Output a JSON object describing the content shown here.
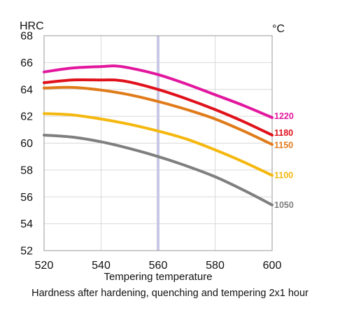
{
  "chart_data": {
    "type": "line",
    "xlabel": "Tempering temperature",
    "ylabel": "HRC",
    "y_unit_label": "HRC",
    "legend_unit_label": "°C",
    "caption": "Hardness after hardening, quenching and tempering  2x1 hour",
    "xlim": [
      520,
      600
    ],
    "ylim": [
      52,
      68
    ],
    "xticks": [
      520,
      540,
      560,
      580,
      600
    ],
    "yticks": [
      52,
      54,
      56,
      58,
      60,
      62,
      64,
      66,
      68
    ],
    "grid": true,
    "highlight_x": 560,
    "highlight_color": "#c8c8e6",
    "series": [
      {
        "name": "1220",
        "color": "#e2179e",
        "points": [
          [
            520,
            65.3
          ],
          [
            530,
            65.6
          ],
          [
            540,
            65.7
          ],
          [
            545,
            65.75
          ],
          [
            550,
            65.6
          ],
          [
            560,
            65.1
          ],
          [
            570,
            64.4
          ],
          [
            580,
            63.6
          ],
          [
            590,
            62.8
          ],
          [
            600,
            61.9
          ]
        ]
      },
      {
        "name": "1180",
        "color": "#e0111b",
        "points": [
          [
            520,
            64.5
          ],
          [
            530,
            64.7
          ],
          [
            540,
            64.7
          ],
          [
            545,
            64.7
          ],
          [
            550,
            64.55
          ],
          [
            560,
            64.0
          ],
          [
            570,
            63.3
          ],
          [
            580,
            62.5
          ],
          [
            590,
            61.6
          ],
          [
            600,
            60.6
          ]
        ]
      },
      {
        "name": "1150",
        "color": "#e07b1a",
        "points": [
          [
            520,
            64.1
          ],
          [
            530,
            64.15
          ],
          [
            540,
            63.95
          ],
          [
            550,
            63.6
          ],
          [
            560,
            63.1
          ],
          [
            570,
            62.5
          ],
          [
            580,
            61.8
          ],
          [
            590,
            60.9
          ],
          [
            600,
            59.9
          ]
        ]
      },
      {
        "name": "1100",
        "color": "#f5b80f",
        "points": [
          [
            520,
            62.2
          ],
          [
            530,
            62.1
          ],
          [
            540,
            61.8
          ],
          [
            550,
            61.4
          ],
          [
            560,
            60.9
          ],
          [
            570,
            60.3
          ],
          [
            580,
            59.5
          ],
          [
            590,
            58.6
          ],
          [
            600,
            57.6
          ]
        ]
      },
      {
        "name": "1050",
        "color": "#7f7f7f",
        "points": [
          [
            520,
            60.6
          ],
          [
            530,
            60.45
          ],
          [
            540,
            60.1
          ],
          [
            550,
            59.6
          ],
          [
            560,
            59.0
          ],
          [
            570,
            58.3
          ],
          [
            580,
            57.5
          ],
          [
            590,
            56.5
          ],
          [
            600,
            55.4
          ]
        ]
      }
    ]
  }
}
